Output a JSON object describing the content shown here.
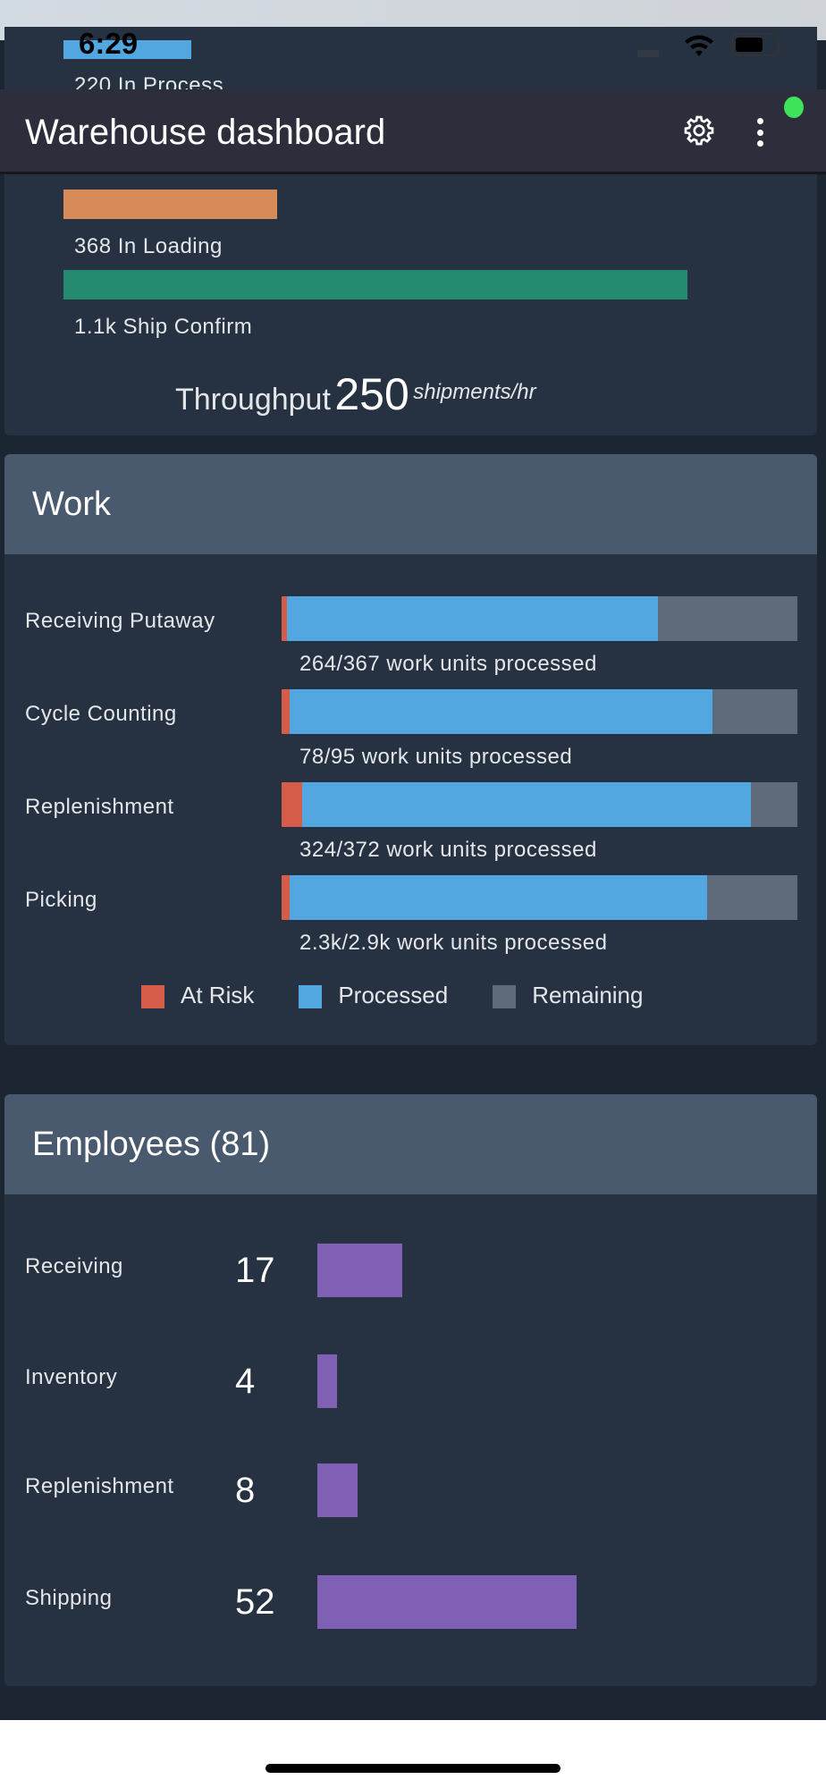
{
  "status_bar": {
    "time": "6:29"
  },
  "app_bar": {
    "title": "Warehouse dashboard",
    "settings_icon": "gear-icon",
    "menu_icon": "more-vertical-icon",
    "connection_color": "#3ee35a"
  },
  "shipments": {
    "items": [
      {
        "label": "220 In Process",
        "color": "#52a7e0",
        "fraction": 0.2
      },
      {
        "label": "368 In Loading",
        "color": "#d68b58",
        "fraction": 0.34
      },
      {
        "label": "1.1k Ship Confirm",
        "color": "#238a70",
        "fraction": 1.0
      }
    ],
    "throughput_label": "Throughput",
    "throughput_value": "250",
    "throughput_unit": "shipments/hr"
  },
  "work": {
    "title": "Work",
    "rows": [
      {
        "label": "Receiving Putaway",
        "caption": "264/367 work units processed",
        "at_risk_pct": 1,
        "processed_pct": 72
      },
      {
        "label": "Cycle Counting",
        "caption": "78/95 work units processed",
        "at_risk_pct": 1.5,
        "processed_pct": 82
      },
      {
        "label": "Replenishment",
        "caption": "324/372 work units processed",
        "at_risk_pct": 4,
        "processed_pct": 87
      },
      {
        "label": "Picking",
        "caption": "2.3k/2.9k work units processed",
        "at_risk_pct": 1.5,
        "processed_pct": 81
      }
    ],
    "legend": [
      {
        "label": "At Risk",
        "color": "#d65c4a"
      },
      {
        "label": "Processed",
        "color": "#52a7e0"
      },
      {
        "label": "Remaining",
        "color": "#5e6a79"
      }
    ]
  },
  "employees": {
    "title": "Employees (81)",
    "rows": [
      {
        "label": "Receiving",
        "count": "17"
      },
      {
        "label": "Inventory",
        "count": "4"
      },
      {
        "label": "Replenishment",
        "count": "8"
      },
      {
        "label": "Shipping",
        "count": "52"
      }
    ]
  }
}
